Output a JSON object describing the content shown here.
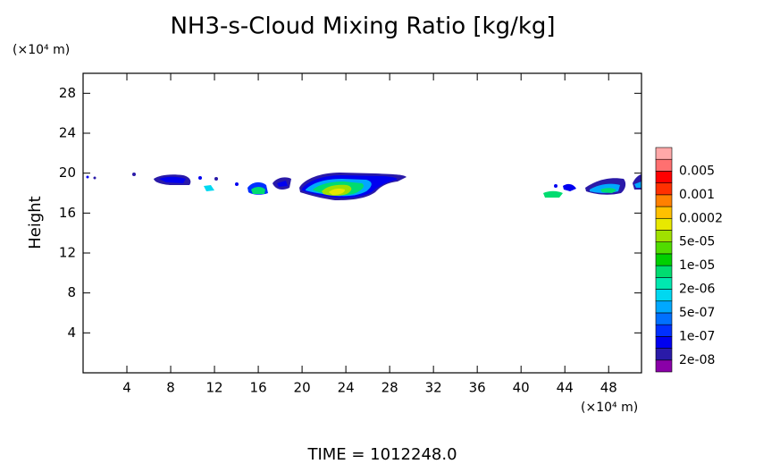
{
  "chart_data": {
    "type": "contour",
    "title": "NH3-s-Cloud Mixing Ratio [kg/kg]",
    "x_unit": "(×10⁴ m)",
    "y_unit": "(×10⁴ m)",
    "ylabel": "Height",
    "footer": "TIME = 1012248.0",
    "xlim": [
      0,
      51
    ],
    "ylim": [
      0,
      30
    ],
    "xticks": [
      4,
      8,
      12,
      16,
      20,
      24,
      28,
      32,
      36,
      40,
      44,
      48
    ],
    "yticks": [
      4,
      8,
      12,
      16,
      20,
      24,
      28
    ],
    "colorbar": {
      "colors": [
        "#8a00a8",
        "#2a1aa8",
        "#0000f0",
        "#0030ff",
        "#0070ff",
        "#00a8ff",
        "#00d8f0",
        "#00e8b0",
        "#00dc70",
        "#00d000",
        "#50dc00",
        "#a0e000",
        "#e8e800",
        "#ffc000",
        "#ff8000",
        "#ff3000",
        "#ff0000",
        "#ff7070",
        "#ffa8a8"
      ],
      "ticks": [
        {
          "value": 2e-08,
          "label": "2e-08"
        },
        {
          "value": 1e-07,
          "label": "1e-07"
        },
        {
          "value": 5e-07,
          "label": "5e-07"
        },
        {
          "value": 2e-06,
          "label": "2e-06"
        },
        {
          "value": 1e-05,
          "label": "1e-05"
        },
        {
          "value": 5e-05,
          "label": "5e-05"
        },
        0.0002,
        0.001,
        0.005
      ]
    }
  }
}
